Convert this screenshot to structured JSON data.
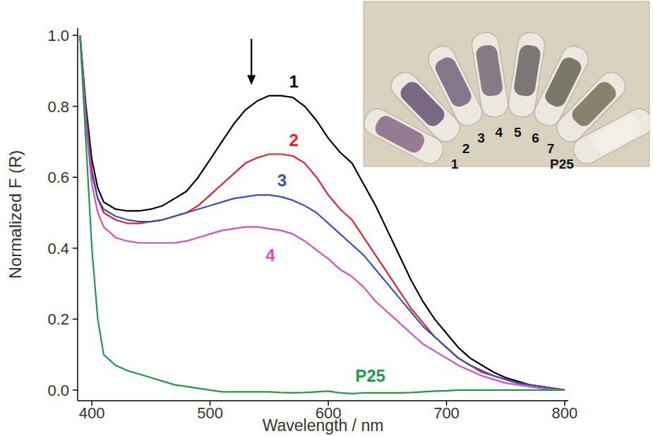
{
  "chart_data": {
    "type": "line",
    "x_label": "Wavelength / nm",
    "y_label": "Normalized F (R)",
    "x": [
      390,
      395,
      400,
      405,
      410,
      420,
      430,
      440,
      450,
      460,
      470,
      480,
      490,
      500,
      510,
      520,
      530,
      540,
      550,
      560,
      570,
      580,
      590,
      600,
      610,
      620,
      630,
      640,
      650,
      660,
      670,
      680,
      690,
      700,
      710,
      720,
      730,
      740,
      750,
      760,
      770,
      780,
      790,
      800
    ],
    "series": [
      {
        "name": "1",
        "color": "#000000",
        "values": [
          1.0,
          0.8,
          0.65,
          0.57,
          0.53,
          0.51,
          0.505,
          0.505,
          0.51,
          0.52,
          0.54,
          0.56,
          0.6,
          0.65,
          0.7,
          0.75,
          0.79,
          0.815,
          0.83,
          0.83,
          0.825,
          0.8,
          0.76,
          0.71,
          0.67,
          0.64,
          0.58,
          0.52,
          0.45,
          0.38,
          0.31,
          0.25,
          0.2,
          0.16,
          0.12,
          0.09,
          0.07,
          0.05,
          0.035,
          0.025,
          0.015,
          0.01,
          0.005,
          0.0
        ]
      },
      {
        "name": "2",
        "color": "#e8202a",
        "values": [
          1.0,
          0.78,
          0.62,
          0.54,
          0.5,
          0.48,
          0.47,
          0.47,
          0.475,
          0.48,
          0.49,
          0.5,
          0.52,
          0.55,
          0.58,
          0.61,
          0.64,
          0.655,
          0.665,
          0.665,
          0.66,
          0.64,
          0.6,
          0.55,
          0.51,
          0.48,
          0.43,
          0.38,
          0.33,
          0.28,
          0.23,
          0.19,
          0.15,
          0.12,
          0.09,
          0.07,
          0.05,
          0.04,
          0.03,
          0.02,
          0.015,
          0.01,
          0.005,
          0.0
        ]
      },
      {
        "name": "3",
        "color": "#3c4fb5",
        "values": [
          1.0,
          0.77,
          0.61,
          0.54,
          0.51,
          0.49,
          0.48,
          0.475,
          0.475,
          0.48,
          0.49,
          0.5,
          0.51,
          0.52,
          0.53,
          0.54,
          0.545,
          0.55,
          0.55,
          0.545,
          0.535,
          0.52,
          0.5,
          0.47,
          0.44,
          0.41,
          0.38,
          0.34,
          0.3,
          0.26,
          0.22,
          0.18,
          0.15,
          0.12,
          0.09,
          0.07,
          0.055,
          0.04,
          0.03,
          0.02,
          0.015,
          0.01,
          0.005,
          0.0
        ]
      },
      {
        "name": "4",
        "color": "#d24fc0",
        "values": [
          1.0,
          0.75,
          0.58,
          0.5,
          0.46,
          0.43,
          0.42,
          0.415,
          0.415,
          0.415,
          0.415,
          0.42,
          0.43,
          0.44,
          0.45,
          0.455,
          0.46,
          0.46,
          0.455,
          0.45,
          0.44,
          0.42,
          0.395,
          0.37,
          0.34,
          0.32,
          0.29,
          0.25,
          0.22,
          0.19,
          0.16,
          0.13,
          0.11,
          0.09,
          0.07,
          0.055,
          0.04,
          0.03,
          0.02,
          0.015,
          0.01,
          0.005,
          0.002,
          0.0
        ]
      },
      {
        "name": "P25",
        "color": "#1e9a4a",
        "values": [
          1.0,
          0.7,
          0.4,
          0.2,
          0.1,
          0.07,
          0.055,
          0.045,
          0.035,
          0.025,
          0.015,
          0.01,
          0.005,
          0.0,
          -0.005,
          -0.005,
          -0.005,
          -0.005,
          -0.005,
          -0.007,
          -0.008,
          -0.007,
          -0.005,
          -0.003,
          -0.008,
          -0.01,
          -0.008,
          -0.008,
          -0.008,
          -0.008,
          -0.007,
          -0.005,
          -0.003,
          -0.002,
          0,
          0,
          0,
          0,
          0,
          0,
          0,
          0,
          0,
          0
        ]
      }
    ],
    "xlim": [
      388,
      803
    ],
    "ylim": [
      -0.03,
      1.02
    ],
    "xticks": [
      400,
      500,
      600,
      700,
      800
    ],
    "yticks": [
      {
        "value": 0,
        "label": "0.0"
      },
      {
        "value": 0.2,
        "label": "0.2"
      },
      {
        "value": 0.4,
        "label": "0.4"
      },
      {
        "value": 0.6,
        "label": "0.6"
      },
      {
        "value": 0.8,
        "label": "0.8"
      },
      {
        "value": 1.0,
        "label": "1.0"
      }
    ],
    "grid": false,
    "arrow": {
      "x": 535,
      "y_from": 0.99,
      "y_to": 0.86
    },
    "annotations": [
      "1",
      "2",
      "3",
      "4",
      "5",
      "6",
      "7",
      "P25"
    ]
  }
}
